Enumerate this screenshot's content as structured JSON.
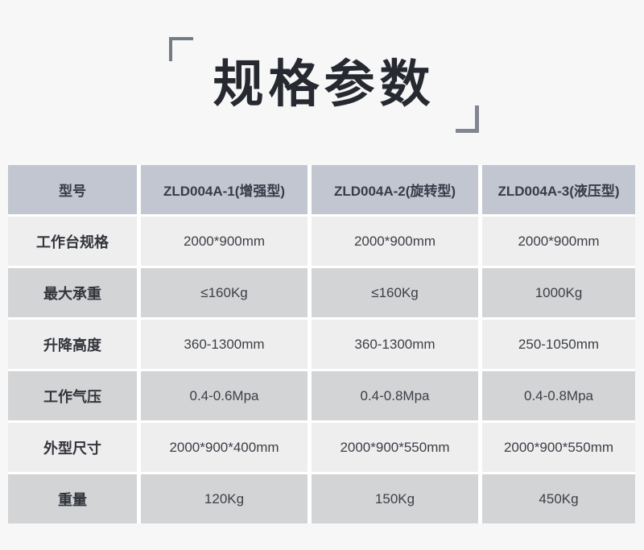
{
  "title": "规格参数",
  "table": {
    "header": {
      "label": "型号",
      "models": [
        "ZLD004A-1(增强型)",
        "ZLD004A-2(旋转型)",
        "ZLD004A-3(液压型)"
      ]
    },
    "rows": [
      {
        "label": "工作台规格",
        "values": [
          "2000*900mm",
          "2000*900mm",
          "2000*900mm"
        ]
      },
      {
        "label": "最大承重",
        "values": [
          "≤160Kg",
          "≤160Kg",
          "1000Kg"
        ]
      },
      {
        "label": "升降高度",
        "values": [
          "360-1300mm",
          "360-1300mm",
          "250-1050mm"
        ]
      },
      {
        "label": "工作气压",
        "values": [
          "0.4-0.6Mpa",
          "0.4-0.8Mpa",
          "0.4-0.8Mpa"
        ]
      },
      {
        "label": "外型尺寸",
        "values": [
          "2000*900*400mm",
          "2000*900*550mm",
          "2000*900*550mm"
        ]
      },
      {
        "label": "重量",
        "values": [
          "120Kg",
          "150Kg",
          "450Kg"
        ]
      }
    ]
  },
  "colors": {
    "page_background": "#f7f7f8",
    "header_row_background": "#c2c6d1",
    "row_light_background": "#eeeeef",
    "row_mid_background": "#d3d4d6",
    "cell_gap": "#ffffff",
    "title_text": "#26292f",
    "bracket": "#7d828c",
    "body_text": "#3c3f45"
  }
}
